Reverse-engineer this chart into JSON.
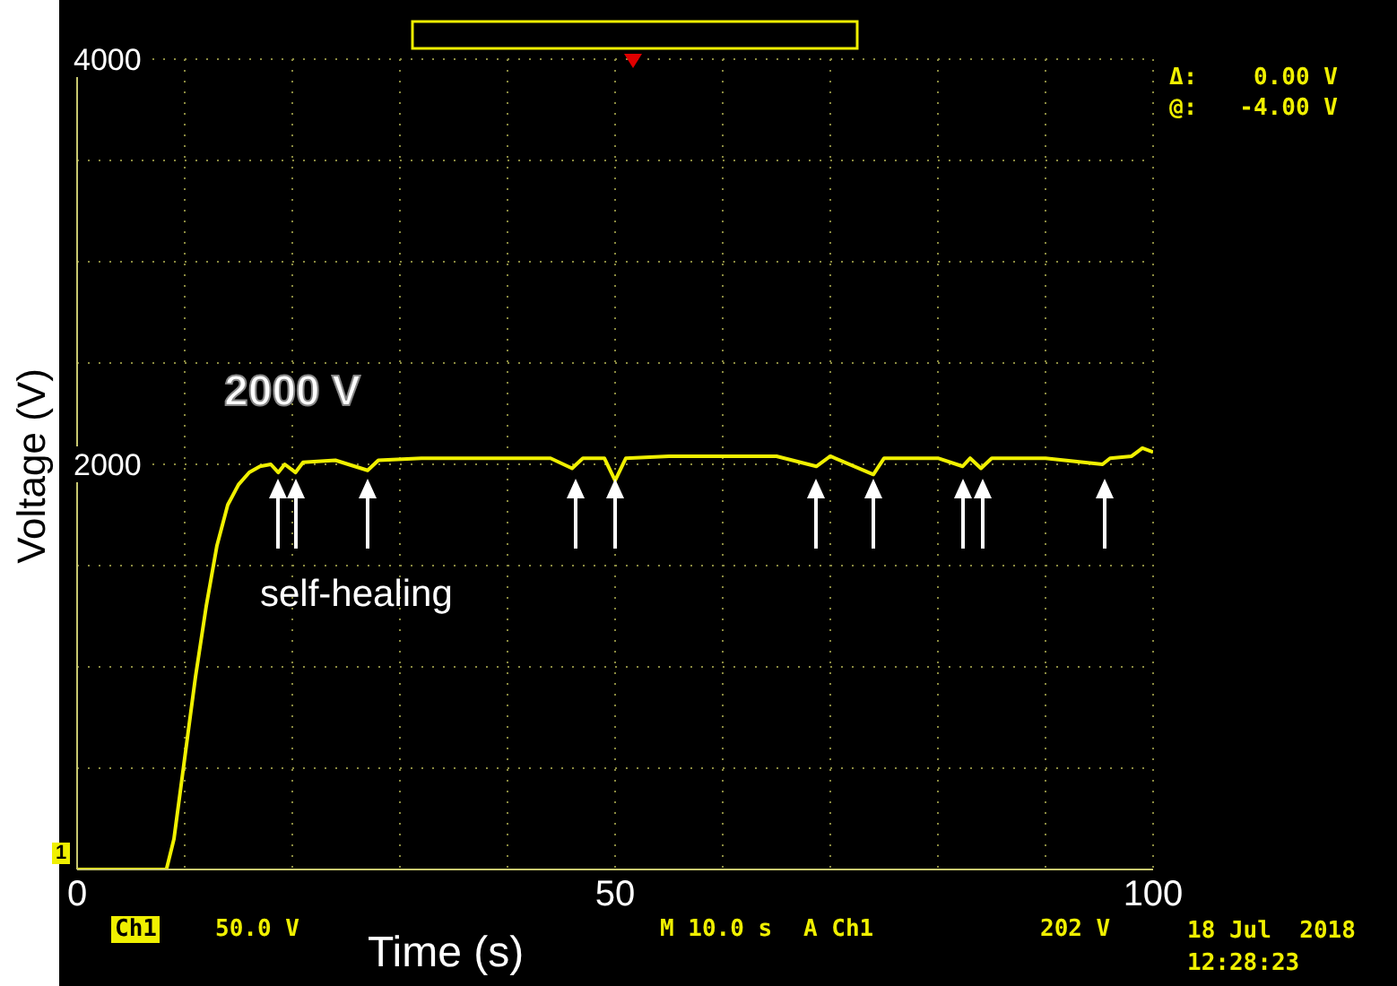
{
  "chart_data": {
    "type": "line",
    "xlabel": "Time (s)",
    "ylabel": "Voltage (V)",
    "xlim": [
      0,
      100
    ],
    "ylim": [
      0,
      4000
    ],
    "xticks": [
      0,
      {
        "value": 10,
        "label": null
      },
      {
        "value": 20,
        "label": null
      },
      {
        "value": 30,
        "label": null
      },
      {
        "value": 40,
        "label": null
      },
      50,
      {
        "value": 60,
        "label": null
      },
      {
        "value": 70,
        "label": null
      },
      {
        "value": 80,
        "label": null
      },
      {
        "value": 90,
        "label": null
      },
      100
    ],
    "yticks": [
      {
        "value": 0,
        "label": null
      },
      {
        "value": 500,
        "label": null
      },
      {
        "value": 1000,
        "label": null
      },
      {
        "value": 1500,
        "label": null
      },
      2000,
      {
        "value": 2500,
        "label": null
      },
      {
        "value": 3000,
        "label": null
      },
      {
        "value": 3500,
        "label": null
      },
      4000
    ],
    "grid": true,
    "marker": "none",
    "line_style": "solid",
    "series": [
      {
        "color": "#f0f000",
        "x": [
          0,
          8.3,
          9,
          10,
          11,
          12,
          13,
          14,
          15,
          16,
          17,
          18,
          18.7,
          19.3,
          20.3,
          21,
          24,
          27,
          28,
          32,
          36,
          40,
          44,
          46,
          47,
          49,
          50,
          51,
          55,
          60,
          65,
          68.7,
          70,
          74,
          75,
          80,
          82.3,
          83,
          84,
          85,
          90,
          95.3,
          96,
          98,
          99,
          100
        ],
        "values": [
          0,
          0,
          150,
          550,
          950,
          1300,
          1600,
          1800,
          1900,
          1960,
          1990,
          2000,
          1960,
          2000,
          1960,
          2010,
          2020,
          1970,
          2020,
          2030,
          2030,
          2030,
          2030,
          1980,
          2030,
          2030,
          1920,
          2030,
          2040,
          2040,
          2040,
          1990,
          2040,
          1950,
          2030,
          2030,
          1990,
          2030,
          1980,
          2030,
          2030,
          2000,
          2030,
          2040,
          2080,
          2060
        ]
      }
    ],
    "annotations": [
      "2000 V",
      "self-healing",
      "Δ:    0.00 V",
      "@:   -4.00 V",
      "Ch1",
      "50.0 V",
      "M 10.0 s",
      "A Ch1",
      "202 V",
      "18 Jul  2018",
      "12:28:23",
      "1"
    ]
  }
}
